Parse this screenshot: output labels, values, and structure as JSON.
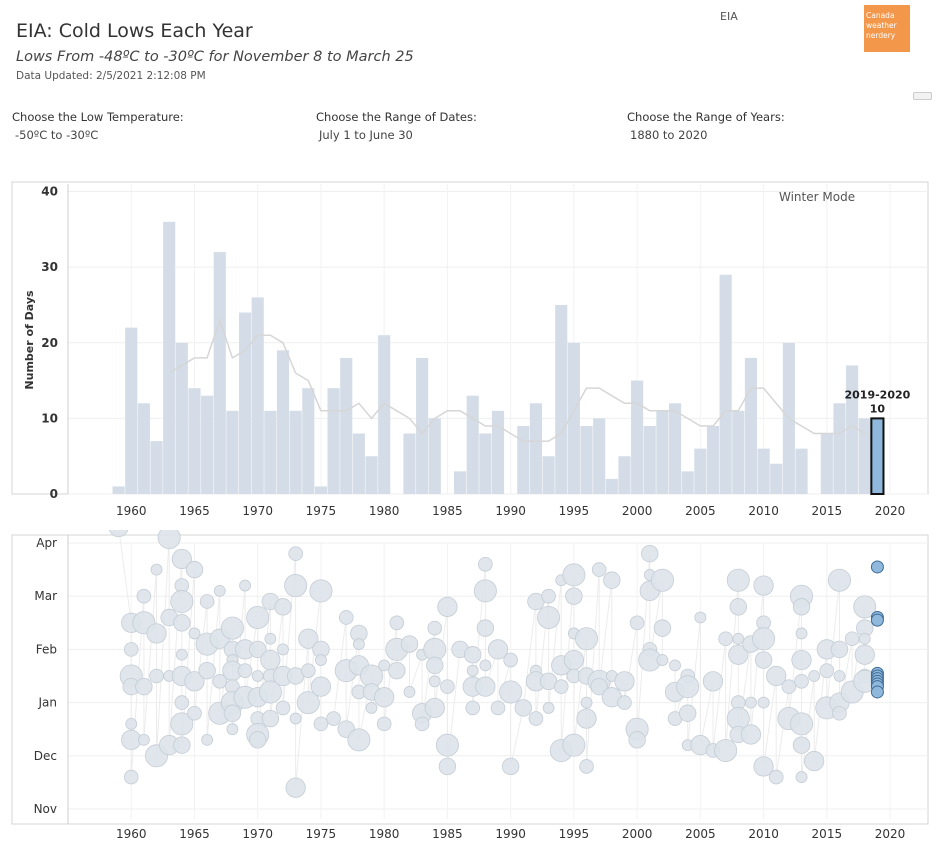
{
  "header": {
    "title": "EIA: Cold Lows Each Year",
    "subtitle": "Lows From -48ºC to -30ºC for November 8 to March 25",
    "updated": "Data Updated: 2/5/2021 2:12:08 PM",
    "station": "EIA",
    "logo_text": "Canada weather nerdery"
  },
  "filters": [
    {
      "label": "Choose the Low Temperature:",
      "value": "-50ºC to -30ºC"
    },
    {
      "label": "Choose the Range of Dates:",
      "value": "July 1 to June 30"
    },
    {
      "label": "Choose the Range of Years:",
      "value": "1880 to 2020"
    }
  ],
  "colors": {
    "bar": "#d4dde7",
    "highlight": "#8fb8dc",
    "highlight_stroke": "#3d6b94",
    "dot": "#dde3ea",
    "dot_stroke": "#c4ccd5"
  },
  "chart_data": [
    {
      "type": "bar",
      "ylabel": "Number of Days",
      "annotation": "Winter Mode",
      "highlight": {
        "season": "2019-2020",
        "value": 10,
        "x": 2019
      },
      "xlim": [
        1955,
        2023
      ],
      "ylim": [
        0,
        41
      ],
      "xticks": [
        1960,
        1965,
        1970,
        1975,
        1980,
        1985,
        1990,
        1995,
        2000,
        2005,
        2010,
        2015,
        2020
      ],
      "yticks": [
        0,
        10,
        20,
        30,
        40
      ],
      "x": [
        1959,
        1960,
        1961,
        1962,
        1963,
        1964,
        1965,
        1966,
        1967,
        1968,
        1969,
        1970,
        1971,
        1972,
        1973,
        1974,
        1975,
        1976,
        1977,
        1978,
        1979,
        1980,
        1981,
        1982,
        1983,
        1984,
        1985,
        1986,
        1987,
        1988,
        1989,
        1990,
        1991,
        1992,
        1993,
        1994,
        1995,
        1996,
        1997,
        1998,
        1999,
        2000,
        2001,
        2002,
        2003,
        2004,
        2005,
        2006,
        2007,
        2008,
        2009,
        2010,
        2011,
        2012,
        2013,
        2014,
        2015,
        2016,
        2017,
        2018,
        2019
      ],
      "values": [
        1,
        22,
        12,
        7,
        36,
        20,
        14,
        13,
        32,
        11,
        24,
        26,
        11,
        19,
        11,
        14,
        1,
        14,
        18,
        8,
        5,
        21,
        0,
        8,
        18,
        10,
        0,
        3,
        13,
        8,
        11,
        0,
        9,
        12,
        5,
        25,
        20,
        9,
        10,
        2,
        5,
        15,
        9,
        11,
        12,
        3,
        6,
        9,
        29,
        11,
        18,
        6,
        4,
        20,
        6,
        0,
        8,
        12,
        17,
        10,
        10
      ],
      "trend": [
        null,
        null,
        null,
        null,
        16,
        17,
        18,
        18,
        23,
        18,
        19,
        21,
        21,
        20,
        16,
        15,
        11,
        11,
        11,
        12,
        10,
        12,
        11,
        10,
        8,
        10,
        11,
        11,
        10,
        9,
        9,
        8,
        7,
        7,
        7,
        8,
        11,
        14,
        14,
        13,
        12,
        12,
        11,
        11,
        11,
        10,
        9,
        9,
        11,
        11,
        14,
        14,
        12,
        10,
        9,
        8,
        8,
        8,
        9,
        8,
        null
      ]
    },
    {
      "type": "scatter",
      "yticks": [
        "Nov",
        "Dec",
        "Jan",
        "Feb",
        "Mar",
        "Apr"
      ],
      "xlim": [
        1955,
        2023
      ],
      "xticks": [
        1960,
        1965,
        1970,
        1975,
        1980,
        1985,
        1990,
        1995,
        2000,
        2005,
        2010,
        2015,
        2020
      ],
      "highlight_year": 2019,
      "points": [
        [
          1959,
          5.3
        ],
        [
          1960,
          3.5
        ],
        [
          1960,
          3.0
        ],
        [
          1960,
          2.5
        ],
        [
          1960,
          2.3
        ],
        [
          1960,
          1.6
        ],
        [
          1960,
          1.3
        ],
        [
          1960,
          0.6
        ],
        [
          1961,
          4.0
        ],
        [
          1961,
          3.5
        ],
        [
          1961,
          2.3
        ],
        [
          1961,
          1.3
        ],
        [
          1962,
          4.5
        ],
        [
          1962,
          3.3
        ],
        [
          1962,
          2.5
        ],
        [
          1962,
          1.0
        ],
        [
          1963,
          5.1
        ],
        [
          1963,
          3.6
        ],
        [
          1963,
          2.5
        ],
        [
          1963,
          1.2
        ],
        [
          1964,
          4.7
        ],
        [
          1964,
          4.2
        ],
        [
          1964,
          3.9
        ],
        [
          1964,
          3.5
        ],
        [
          1964,
          2.9
        ],
        [
          1964,
          2.5
        ],
        [
          1964,
          2.0
        ],
        [
          1964,
          1.6
        ],
        [
          1964,
          1.2
        ],
        [
          1965,
          4.5
        ],
        [
          1965,
          3.3
        ],
        [
          1965,
          2.4
        ],
        [
          1965,
          1.8
        ],
        [
          1966,
          3.9
        ],
        [
          1966,
          3.1
        ],
        [
          1966,
          2.6
        ],
        [
          1966,
          1.3
        ],
        [
          1967,
          4.1
        ],
        [
          1967,
          3.2
        ],
        [
          1967,
          2.4
        ],
        [
          1967,
          1.8
        ],
        [
          1968,
          3.4
        ],
        [
          1968,
          3.0
        ],
        [
          1968,
          2.8
        ],
        [
          1968,
          2.6
        ],
        [
          1968,
          2.3
        ],
        [
          1968,
          2.0
        ],
        [
          1968,
          1.8
        ],
        [
          1968,
          1.5
        ],
        [
          1969,
          4.2
        ],
        [
          1969,
          3.0
        ],
        [
          1969,
          2.6
        ],
        [
          1969,
          2.1
        ],
        [
          1970,
          3.6
        ],
        [
          1970,
          3.0
        ],
        [
          1970,
          2.5
        ],
        [
          1970,
          2.1
        ],
        [
          1970,
          1.7
        ],
        [
          1970,
          1.4
        ],
        [
          1970,
          1.3
        ],
        [
          1971,
          3.9
        ],
        [
          1971,
          3.2
        ],
        [
          1971,
          2.8
        ],
        [
          1971,
          2.5
        ],
        [
          1971,
          2.2
        ],
        [
          1971,
          1.7
        ],
        [
          1972,
          3.8
        ],
        [
          1972,
          3.0
        ],
        [
          1972,
          2.5
        ],
        [
          1972,
          1.9
        ],
        [
          1973,
          4.8
        ],
        [
          1973,
          4.2
        ],
        [
          1973,
          2.5
        ],
        [
          1973,
          1.7
        ],
        [
          1973,
          0.4
        ],
        [
          1974,
          3.2
        ],
        [
          1974,
          2.6
        ],
        [
          1974,
          2.0
        ],
        [
          1975,
          4.1
        ],
        [
          1975,
          3.0
        ],
        [
          1975,
          2.8
        ],
        [
          1975,
          2.3
        ],
        [
          1975,
          1.6
        ],
        [
          1976,
          1.7
        ],
        [
          1977,
          3.6
        ],
        [
          1977,
          2.6
        ],
        [
          1977,
          1.5
        ],
        [
          1978,
          3.3
        ],
        [
          1978,
          3.1
        ],
        [
          1978,
          2.7
        ],
        [
          1978,
          2.2
        ],
        [
          1978,
          1.3
        ],
        [
          1979,
          2.5
        ],
        [
          1979,
          2.2
        ],
        [
          1979,
          1.9
        ],
        [
          1980,
          2.7
        ],
        [
          1980,
          2.1
        ],
        [
          1980,
          1.6
        ],
        [
          1981,
          3.5
        ],
        [
          1981,
          3.0
        ],
        [
          1981,
          2.6
        ],
        [
          1982,
          3.1
        ],
        [
          1982,
          2.2
        ],
        [
          1983,
          2.9
        ],
        [
          1983,
          1.8
        ],
        [
          1983,
          1.6
        ],
        [
          1984,
          3.4
        ],
        [
          1984,
          3.0
        ],
        [
          1984,
          2.7
        ],
        [
          1984,
          2.4
        ],
        [
          1984,
          1.9
        ],
        [
          1985,
          3.8
        ],
        [
          1985,
          2.3
        ],
        [
          1985,
          1.2
        ],
        [
          1985,
          0.8
        ],
        [
          1986,
          3.0
        ],
        [
          1987,
          2.9
        ],
        [
          1987,
          2.6
        ],
        [
          1987,
          2.3
        ],
        [
          1987,
          1.9
        ],
        [
          1988,
          4.6
        ],
        [
          1988,
          4.1
        ],
        [
          1988,
          3.4
        ],
        [
          1988,
          2.7
        ],
        [
          1988,
          2.3
        ],
        [
          1989,
          3.0
        ],
        [
          1989,
          1.9
        ],
        [
          1990,
          2.8
        ],
        [
          1990,
          2.2
        ],
        [
          1990,
          0.8
        ],
        [
          1991,
          1.9
        ],
        [
          1992,
          3.9
        ],
        [
          1992,
          2.6
        ],
        [
          1992,
          2.4
        ],
        [
          1992,
          1.7
        ],
        [
          1993,
          4.0
        ],
        [
          1993,
          3.6
        ],
        [
          1993,
          2.4
        ],
        [
          1993,
          1.9
        ],
        [
          1994,
          4.3
        ],
        [
          1994,
          2.7
        ],
        [
          1994,
          2.3
        ],
        [
          1994,
          1.1
        ],
        [
          1995,
          4.4
        ],
        [
          1995,
          4.0
        ],
        [
          1995,
          3.3
        ],
        [
          1995,
          2.8
        ],
        [
          1995,
          2.5
        ],
        [
          1995,
          1.2
        ],
        [
          1996,
          3.2
        ],
        [
          1996,
          2.5
        ],
        [
          1996,
          2.0
        ],
        [
          1996,
          1.7
        ],
        [
          1996,
          0.8
        ],
        [
          1997,
          4.5
        ],
        [
          1997,
          2.4
        ],
        [
          1997,
          2.3
        ],
        [
          1998,
          4.3
        ],
        [
          1998,
          2.5
        ],
        [
          1998,
          2.1
        ],
        [
          1999,
          2.4
        ],
        [
          1999,
          2.0
        ],
        [
          2000,
          3.5
        ],
        [
          2000,
          1.5
        ],
        [
          2000,
          1.3
        ],
        [
          2001,
          4.8
        ],
        [
          2001,
          4.4
        ],
        [
          2001,
          4.1
        ],
        [
          2001,
          3.0
        ],
        [
          2001,
          2.8
        ],
        [
          2002,
          4.3
        ],
        [
          2002,
          3.4
        ],
        [
          2002,
          2.8
        ],
        [
          2003,
          2.7
        ],
        [
          2003,
          2.2
        ],
        [
          2003,
          1.7
        ],
        [
          2004,
          2.5
        ],
        [
          2004,
          2.3
        ],
        [
          2004,
          1.8
        ],
        [
          2004,
          1.2
        ],
        [
          2005,
          3.6
        ],
        [
          2005,
          1.2
        ],
        [
          2006,
          2.4
        ],
        [
          2006,
          1.1
        ],
        [
          2007,
          3.2
        ],
        [
          2007,
          1.1
        ],
        [
          2008,
          4.3
        ],
        [
          2008,
          3.8
        ],
        [
          2008,
          3.2
        ],
        [
          2008,
          2.9
        ],
        [
          2008,
          2.0
        ],
        [
          2008,
          1.7
        ],
        [
          2008,
          1.4
        ],
        [
          2009,
          3.1
        ],
        [
          2009,
          2.0
        ],
        [
          2009,
          1.4
        ],
        [
          2010,
          4.2
        ],
        [
          2010,
          3.5
        ],
        [
          2010,
          3.2
        ],
        [
          2010,
          2.8
        ],
        [
          2010,
          2.0
        ],
        [
          2010,
          0.8
        ],
        [
          2011,
          2.5
        ],
        [
          2011,
          0.6
        ],
        [
          2012,
          2.3
        ],
        [
          2012,
          1.7
        ],
        [
          2013,
          4.0
        ],
        [
          2013,
          3.8
        ],
        [
          2013,
          3.3
        ],
        [
          2013,
          2.8
        ],
        [
          2013,
          2.4
        ],
        [
          2013,
          1.6
        ],
        [
          2013,
          1.2
        ],
        [
          2013,
          0.6
        ],
        [
          2014,
          2.5
        ],
        [
          2014,
          0.9
        ],
        [
          2015,
          3.0
        ],
        [
          2015,
          2.6
        ],
        [
          2015,
          1.9
        ],
        [
          2016,
          4.3
        ],
        [
          2016,
          3.0
        ],
        [
          2016,
          2.5
        ],
        [
          2016,
          2.0
        ],
        [
          2016,
          1.8
        ],
        [
          2017,
          3.2
        ],
        [
          2017,
          2.2
        ],
        [
          2018,
          3.8
        ],
        [
          2018,
          3.4
        ],
        [
          2018,
          3.2
        ],
        [
          2018,
          2.9
        ],
        [
          2018,
          2.5
        ],
        [
          2018,
          2.4
        ]
      ],
      "highlight_points": [
        [
          2019,
          4.55
        ],
        [
          2019,
          3.6
        ],
        [
          2019,
          3.55
        ],
        [
          2019,
          2.55
        ],
        [
          2019,
          2.5
        ],
        [
          2019,
          2.45
        ],
        [
          2019,
          2.4
        ],
        [
          2019,
          2.35
        ],
        [
          2019,
          2.3
        ],
        [
          2019,
          2.2
        ]
      ]
    }
  ]
}
